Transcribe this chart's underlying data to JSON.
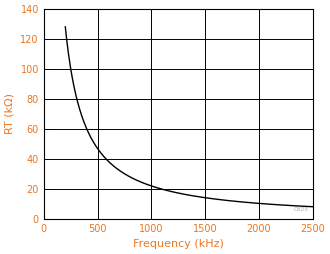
{
  "title": "",
  "xlabel": "Frequency (kHz)",
  "ylabel": "RT (kΩ)",
  "xlim": [
    0,
    2500
  ],
  "ylim": [
    0,
    140
  ],
  "xticks": [
    0,
    500,
    1000,
    1500,
    2000,
    2500
  ],
  "yticks": [
    0,
    20,
    40,
    60,
    80,
    100,
    120,
    140
  ],
  "curve_color": "#000000",
  "background_color": "#ffffff",
  "grid_color": "#000000",
  "tick_label_color": "#e87722",
  "axis_label_color": "#e87722",
  "curve_start_freq": 200,
  "curve_end_freq": 2500,
  "curve_A": 29477,
  "curve_b": 1.076,
  "figsize": [
    3.3,
    2.54
  ],
  "dpi": 100,
  "watermark": "C025",
  "tick_labelsize": 7,
  "xlabel_fontsize": 8,
  "ylabel_fontsize": 8,
  "grid_linewidth": 0.7,
  "curve_linewidth": 1.0,
  "spine_linewidth": 0.8
}
